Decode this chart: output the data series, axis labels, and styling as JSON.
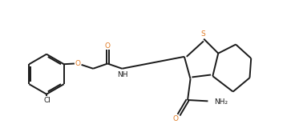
{
  "bg_color": "#ffffff",
  "bond_color": "#1a1a1a",
  "atom_color_O": "#e07820",
  "atom_color_S": "#e07820",
  "atom_color_N": "#1a1a1a",
  "atom_color_Cl": "#1a1a1a",
  "line_width": 1.4,
  "figsize": [
    3.73,
    1.75
  ],
  "dpi": 100,
  "xlim": [
    0,
    10.5
  ],
  "ylim": [
    0,
    5.0
  ]
}
